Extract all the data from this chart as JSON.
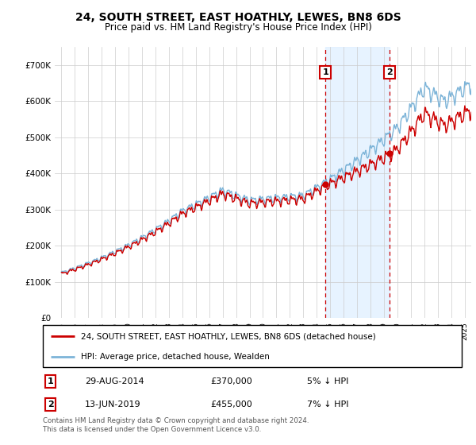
{
  "title": "24, SOUTH STREET, EAST HOATHLY, LEWES, BN8 6DS",
  "subtitle": "Price paid vs. HM Land Registry's House Price Index (HPI)",
  "legend_line1": "24, SOUTH STREET, EAST HOATHLY, LEWES, BN8 6DS (detached house)",
  "legend_line2": "HPI: Average price, detached house, Wealden",
  "footnote": "Contains HM Land Registry data © Crown copyright and database right 2024.\nThis data is licensed under the Open Government Licence v3.0.",
  "sale1_label": "1",
  "sale1_date": "29-AUG-2014",
  "sale1_price": "£370,000",
  "sale1_hpi": "5% ↓ HPI",
  "sale2_label": "2",
  "sale2_date": "13-JUN-2019",
  "sale2_price": "£455,000",
  "sale2_hpi": "7% ↓ HPI",
  "hpi_color": "#7db4d8",
  "price_color": "#cc0000",
  "fill_color": "#ddeeff",
  "sale1_x": 2014.65,
  "sale1_y": 370000,
  "sale2_x": 2019.44,
  "sale2_y": 455000,
  "ylim": [
    0,
    750000
  ],
  "xlim": [
    1994.5,
    2025.5
  ],
  "grid_color": "#cccccc"
}
